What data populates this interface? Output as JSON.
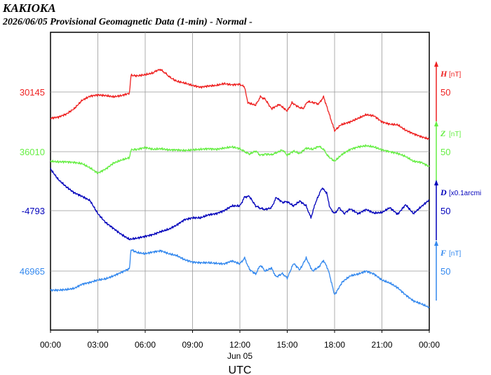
{
  "header": {
    "station": "KAKIOKA",
    "subtitle": "2026/06/05  Provisional Geomagnetic Data (1-min)  - Normal -"
  },
  "chart_data": {
    "type": "line",
    "xlabel": "UTC",
    "xticks": [
      "00:00",
      "03:00",
      "06:00",
      "09:00",
      "12:00",
      "15:00",
      "18:00",
      "21:00",
      "00:00"
    ],
    "date_label": "Jun 05",
    "x_range_hours": [
      0,
      24
    ],
    "grid": true,
    "series": [
      {
        "key": "H",
        "name": "H",
        "unit": "[nT]",
        "color": "#ee2222",
        "baseline_label": "30145",
        "scale_label": "50",
        "values": [
          [
            0,
            -44
          ],
          [
            0.5,
            -42
          ],
          [
            1,
            -37
          ],
          [
            1.5,
            -28
          ],
          [
            2,
            -14
          ],
          [
            2.5,
            -7
          ],
          [
            3,
            -5
          ],
          [
            3.5,
            -6
          ],
          [
            4,
            -8
          ],
          [
            4.5,
            -6
          ],
          [
            5,
            -2
          ],
          [
            5.1,
            28
          ],
          [
            5.5,
            27
          ],
          [
            6,
            29
          ],
          [
            6.5,
            32
          ],
          [
            6.8,
            37
          ],
          [
            7,
            37
          ],
          [
            7.3,
            31
          ],
          [
            7.6,
            24
          ],
          [
            8,
            18
          ],
          [
            8.5,
            15
          ],
          [
            9,
            11
          ],
          [
            9.5,
            8
          ],
          [
            10,
            10
          ],
          [
            10.5,
            11
          ],
          [
            11,
            14
          ],
          [
            11.5,
            12
          ],
          [
            12,
            13
          ],
          [
            12.3,
            8
          ],
          [
            12.5,
            -18
          ],
          [
            13,
            -22
          ],
          [
            13.3,
            -8
          ],
          [
            13.6,
            -12
          ],
          [
            14,
            -28
          ],
          [
            14.5,
            -21
          ],
          [
            15,
            -32
          ],
          [
            15.3,
            -18
          ],
          [
            15.7,
            -25
          ],
          [
            16,
            -28
          ],
          [
            16.3,
            -16
          ],
          [
            16.7,
            -18
          ],
          [
            17,
            -20
          ],
          [
            17.3,
            -8
          ],
          [
            17.7,
            -40
          ],
          [
            18,
            -65
          ],
          [
            18.4,
            -55
          ],
          [
            19,
            -50
          ],
          [
            19.5,
            -44
          ],
          [
            20,
            -38
          ],
          [
            20.5,
            -40
          ],
          [
            21,
            -50
          ],
          [
            21.5,
            -54
          ],
          [
            22,
            -55
          ],
          [
            22.5,
            -64
          ],
          [
            23,
            -70
          ],
          [
            23.5,
            -75
          ],
          [
            24,
            -79
          ]
        ]
      },
      {
        "key": "Z",
        "name": "Z",
        "unit": "[nT]",
        "color": "#66ee44",
        "baseline_label": "36010",
        "scale_label": "50",
        "values": [
          [
            0,
            -16
          ],
          [
            0.5,
            -17
          ],
          [
            1,
            -17
          ],
          [
            1.5,
            -18
          ],
          [
            2,
            -20
          ],
          [
            2.5,
            -27
          ],
          [
            3,
            -36
          ],
          [
            3.5,
            -29
          ],
          [
            4,
            -19
          ],
          [
            4.5,
            -14
          ],
          [
            5,
            -10
          ],
          [
            5.1,
            3
          ],
          [
            5.5,
            4
          ],
          [
            6,
            7
          ],
          [
            6.5,
            4
          ],
          [
            7,
            5
          ],
          [
            7.5,
            3
          ],
          [
            8,
            3
          ],
          [
            8.5,
            2
          ],
          [
            9,
            3
          ],
          [
            9.5,
            4
          ],
          [
            10,
            5
          ],
          [
            10.5,
            4
          ],
          [
            11,
            6
          ],
          [
            11.5,
            8
          ],
          [
            12,
            5
          ],
          [
            12.3,
            0
          ],
          [
            12.6,
            -4
          ],
          [
            13,
            1
          ],
          [
            13.3,
            -6
          ],
          [
            13.6,
            -4
          ],
          [
            14,
            -5
          ],
          [
            14.3,
            -2
          ],
          [
            14.7,
            3
          ],
          [
            15,
            -6
          ],
          [
            15.4,
            1
          ],
          [
            15.8,
            -3
          ],
          [
            16.2,
            6
          ],
          [
            16.6,
            4
          ],
          [
            17,
            9
          ],
          [
            17.3,
            4
          ],
          [
            17.6,
            -8
          ],
          [
            18,
            -16
          ],
          [
            18.5,
            -4
          ],
          [
            19,
            4
          ],
          [
            19.5,
            8
          ],
          [
            20,
            10
          ],
          [
            20.5,
            8
          ],
          [
            21,
            3
          ],
          [
            21.5,
            0
          ],
          [
            22,
            -3
          ],
          [
            22.5,
            -8
          ],
          [
            23,
            -16
          ],
          [
            23.5,
            -18
          ],
          [
            24,
            -25
          ]
        ]
      },
      {
        "key": "D",
        "name": "D",
        "unit": "[x0.1arcmi",
        "color": "#0000bb",
        "baseline_label": "-4793",
        "scale_label": "50",
        "values": [
          [
            0,
            70
          ],
          [
            0.5,
            52
          ],
          [
            1,
            40
          ],
          [
            1.5,
            30
          ],
          [
            2,
            24
          ],
          [
            2.5,
            17
          ],
          [
            3,
            -5
          ],
          [
            3.5,
            -20
          ],
          [
            4,
            -30
          ],
          [
            4.5,
            -40
          ],
          [
            5,
            -48
          ],
          [
            5.5,
            -46
          ],
          [
            6,
            -43
          ],
          [
            6.5,
            -40
          ],
          [
            7,
            -35
          ],
          [
            7.5,
            -31
          ],
          [
            8,
            -24
          ],
          [
            8.5,
            -15
          ],
          [
            9,
            -12
          ],
          [
            9.5,
            -12
          ],
          [
            10,
            -7
          ],
          [
            10.5,
            -5
          ],
          [
            11,
            0
          ],
          [
            11.5,
            8
          ],
          [
            12,
            8
          ],
          [
            12.3,
            23
          ],
          [
            12.6,
            24
          ],
          [
            13,
            8
          ],
          [
            13.3,
            4
          ],
          [
            13.6,
            2
          ],
          [
            14,
            5
          ],
          [
            14.3,
            22
          ],
          [
            14.7,
            14
          ],
          [
            15,
            15
          ],
          [
            15.4,
            8
          ],
          [
            15.8,
            16
          ],
          [
            16.2,
            8
          ],
          [
            16.5,
            -12
          ],
          [
            16.8,
            14
          ],
          [
            17.2,
            38
          ],
          [
            17.5,
            30
          ],
          [
            17.7,
            5
          ],
          [
            18,
            -5
          ],
          [
            18.3,
            5
          ],
          [
            18.6,
            -5
          ],
          [
            19,
            3
          ],
          [
            19.5,
            -5
          ],
          [
            20,
            2
          ],
          [
            20.5,
            -4
          ],
          [
            21,
            -3
          ],
          [
            21.5,
            5
          ],
          [
            22,
            -6
          ],
          [
            22.5,
            10
          ],
          [
            23,
            -5
          ],
          [
            23.5,
            7
          ],
          [
            24,
            18
          ]
        ]
      },
      {
        "key": "F",
        "name": "F",
        "unit": "[nT]",
        "color": "#3388ee",
        "baseline_label": "46965",
        "scale_label": "50",
        "values": [
          [
            0,
            -32
          ],
          [
            0.5,
            -32
          ],
          [
            1,
            -31
          ],
          [
            1.5,
            -29
          ],
          [
            2,
            -22
          ],
          [
            2.5,
            -19
          ],
          [
            3,
            -15
          ],
          [
            3.5,
            -13
          ],
          [
            4,
            -8
          ],
          [
            4.5,
            -2
          ],
          [
            5,
            4
          ],
          [
            5.1,
            36
          ],
          [
            5.5,
            31
          ],
          [
            6,
            29
          ],
          [
            6.5,
            32
          ],
          [
            7,
            34
          ],
          [
            7.5,
            29
          ],
          [
            8,
            26
          ],
          [
            8.5,
            19
          ],
          [
            9,
            15
          ],
          [
            9.5,
            14
          ],
          [
            10,
            14
          ],
          [
            10.5,
            13
          ],
          [
            11,
            12
          ],
          [
            11.5,
            17
          ],
          [
            12,
            12
          ],
          [
            12.3,
            22
          ],
          [
            12.6,
            3
          ],
          [
            13,
            -5
          ],
          [
            13.3,
            10
          ],
          [
            13.6,
            0
          ],
          [
            14,
            5
          ],
          [
            14.3,
            -10
          ],
          [
            14.7,
            -4
          ],
          [
            15,
            -12
          ],
          [
            15.4,
            13
          ],
          [
            15.8,
            2
          ],
          [
            16.2,
            22
          ],
          [
            16.6,
            0
          ],
          [
            17,
            7
          ],
          [
            17.3,
            18
          ],
          [
            17.6,
            2
          ],
          [
            18,
            -40
          ],
          [
            18.5,
            -18
          ],
          [
            19,
            -8
          ],
          [
            19.5,
            -5
          ],
          [
            20,
            0
          ],
          [
            20.5,
            -5
          ],
          [
            21,
            -15
          ],
          [
            21.5,
            -20
          ],
          [
            22,
            -28
          ],
          [
            22.5,
            -40
          ],
          [
            23,
            -50
          ],
          [
            23.5,
            -55
          ],
          [
            24,
            -61
          ]
        ]
      }
    ]
  }
}
